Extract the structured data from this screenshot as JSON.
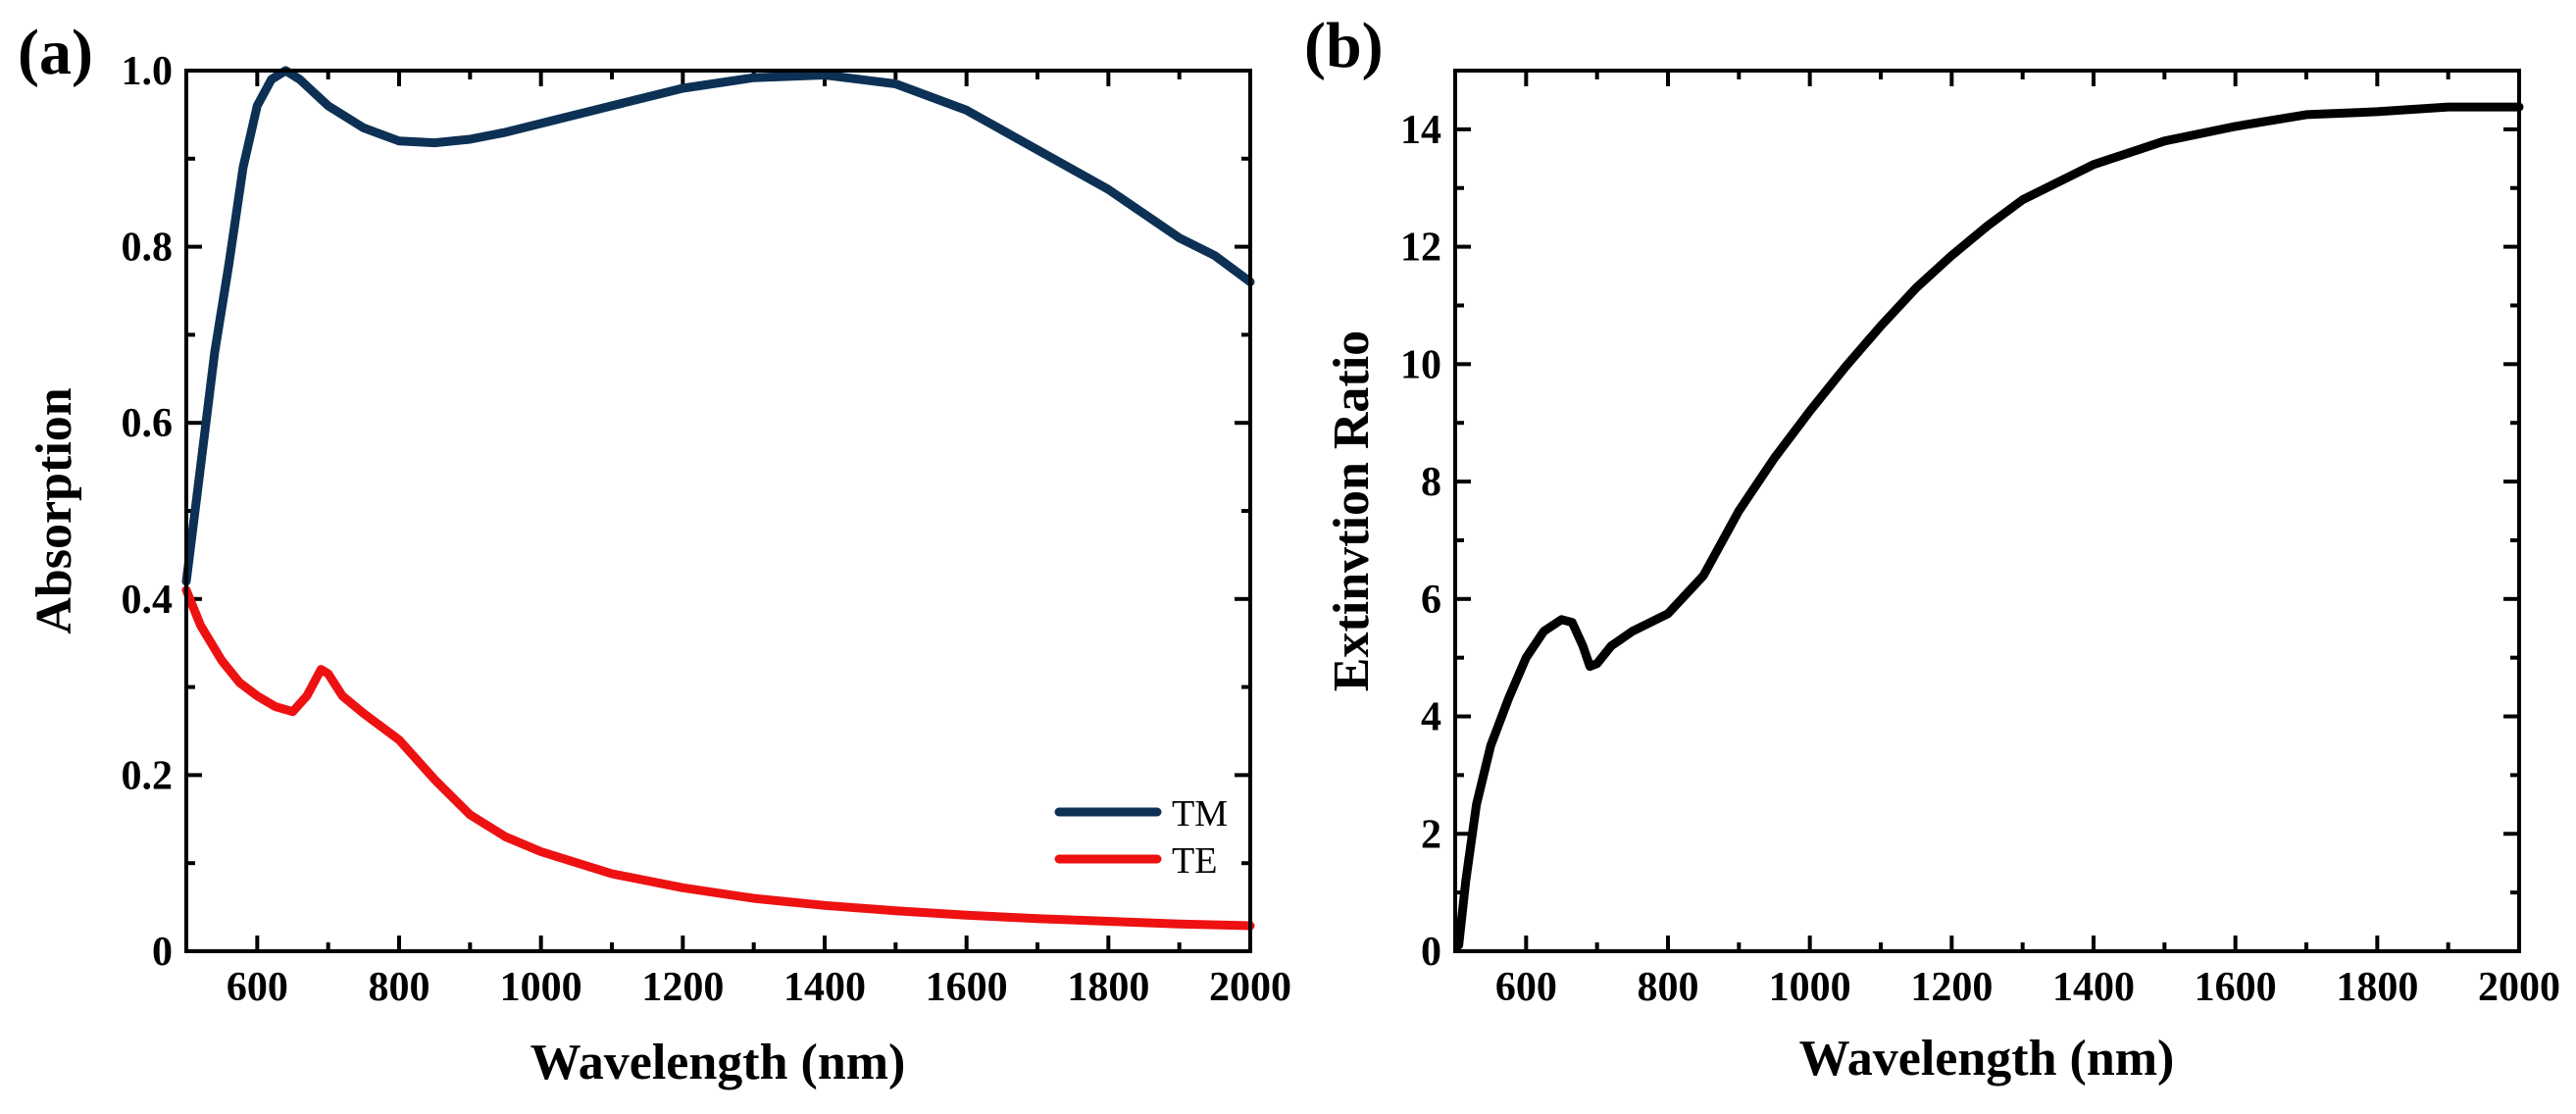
{
  "chart_data": [
    {
      "panel": "(a)",
      "type": "line",
      "xlabel": "Wavelength (nm)",
      "ylabel": "Absorption",
      "xlim": [
        500,
        2000
      ],
      "ylim": [
        0,
        1.0
      ],
      "x_ticks": [
        600,
        800,
        1000,
        1200,
        1400,
        1600,
        1800,
        2000
      ],
      "y_ticks": [
        0,
        0.2,
        0.4,
        0.6,
        0.8,
        1.0
      ],
      "x_tick_labels": [
        "600",
        "800",
        "1000",
        "1200",
        "1400",
        "1600",
        "1800",
        "2000"
      ],
      "y_tick_labels": [
        "0",
        "0.2",
        "0.4",
        "0.6",
        "0.8",
        "1.0"
      ],
      "legend": "bottom-right",
      "series": [
        {
          "name": "TM",
          "color": "#0d3055",
          "x": [
            500,
            520,
            540,
            560,
            580,
            600,
            620,
            640,
            660,
            680,
            700,
            750,
            800,
            850,
            900,
            950,
            1000,
            1100,
            1200,
            1300,
            1400,
            1500,
            1600,
            1700,
            1800,
            1900,
            1950,
            2000
          ],
          "y": [
            0.42,
            0.55,
            0.68,
            0.78,
            0.89,
            0.96,
            0.99,
            1.0,
            0.99,
            0.975,
            0.96,
            0.935,
            0.92,
            0.918,
            0.922,
            0.93,
            0.94,
            0.96,
            0.98,
            0.992,
            0.995,
            0.985,
            0.955,
            0.91,
            0.865,
            0.81,
            0.79,
            0.76
          ]
        },
        {
          "name": "TE",
          "color": "#ee1111",
          "x": [
            500,
            520,
            550,
            575,
            600,
            625,
            650,
            670,
            690,
            700,
            720,
            750,
            800,
            850,
            900,
            950,
            1000,
            1100,
            1200,
            1300,
            1400,
            1500,
            1600,
            1700,
            1800,
            1900,
            2000
          ],
          "y": [
            0.41,
            0.37,
            0.33,
            0.305,
            0.29,
            0.278,
            0.272,
            0.29,
            0.32,
            0.315,
            0.29,
            0.27,
            0.24,
            0.195,
            0.155,
            0.13,
            0.113,
            0.088,
            0.072,
            0.06,
            0.052,
            0.046,
            0.041,
            0.037,
            0.034,
            0.031,
            0.029
          ]
        }
      ]
    },
    {
      "panel": "(b)",
      "type": "line",
      "xlabel": "Wavelength (nm)",
      "ylabel": "Extinvtion Ratio",
      "xlim": [
        500,
        2000
      ],
      "ylim": [
        0,
        15
      ],
      "x_ticks": [
        600,
        800,
        1000,
        1200,
        1400,
        1600,
        1800,
        2000
      ],
      "y_ticks": [
        0,
        2,
        4,
        6,
        8,
        10,
        12,
        14
      ],
      "x_tick_labels": [
        "600",
        "800",
        "1000",
        "1200",
        "1400",
        "1600",
        "1800",
        "2000"
      ],
      "y_tick_labels": [
        "0",
        "2",
        "4",
        "6",
        "8",
        "10",
        "12",
        "14"
      ],
      "series": [
        {
          "name": "Extinction Ratio",
          "color": "#000000",
          "x": [
            505,
            515,
            530,
            550,
            575,
            600,
            625,
            650,
            665,
            680,
            690,
            700,
            720,
            750,
            800,
            850,
            900,
            950,
            1000,
            1050,
            1100,
            1150,
            1200,
            1250,
            1300,
            1400,
            1500,
            1600,
            1700,
            1800,
            1900,
            2000
          ],
          "y": [
            0.1,
            1.2,
            2.5,
            3.5,
            4.3,
            5.0,
            5.45,
            5.65,
            5.6,
            5.2,
            4.85,
            4.9,
            5.2,
            5.45,
            5.75,
            6.4,
            7.5,
            8.4,
            9.2,
            9.95,
            10.65,
            11.3,
            11.85,
            12.35,
            12.8,
            13.4,
            13.8,
            14.05,
            14.25,
            14.3,
            14.38,
            14.38
          ]
        }
      ]
    }
  ]
}
